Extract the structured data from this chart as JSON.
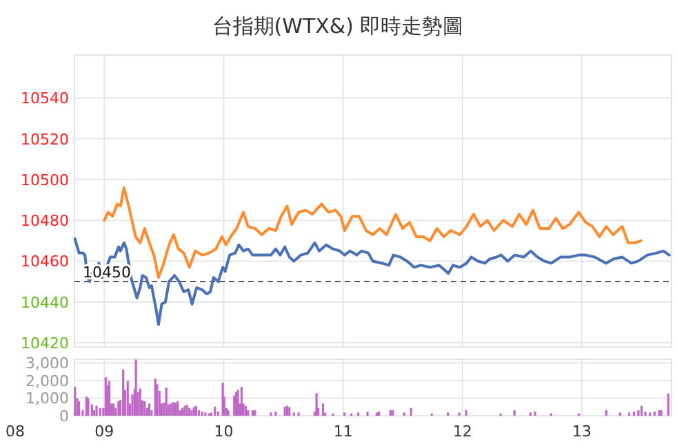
{
  "chart_data": [
    {
      "type": "line",
      "title": "台指期(WTX&) 即時走勢圖",
      "xlim": [
        8.75,
        13.75
      ],
      "xticks": [
        9,
        10,
        11,
        12,
        13
      ],
      "ylim": [
        10418,
        10561
      ],
      "yticks": [
        10420,
        10440,
        10460,
        10480,
        10500,
        10520,
        10540
      ],
      "grid": true,
      "tick_labels": "y",
      "line_style": "solid",
      "marker": "none",
      "ref_lines": [
        {
          "axis": "y",
          "value": 10450,
          "label": "10450",
          "color": "#555555",
          "line_style": "dashed"
        }
      ],
      "series": [
        {
          "color": "#4a70b8",
          "x": [
            8.754,
            8.788,
            8.819,
            8.838,
            8.858,
            8.877,
            8.896,
            8.935,
            8.954,
            8.981,
            9.012,
            9.05,
            9.088,
            9.119,
            9.135,
            9.165,
            9.185,
            9.223,
            9.273,
            9.3,
            9.319,
            9.35,
            9.377,
            9.396,
            9.435,
            9.454,
            9.481,
            9.512,
            9.542,
            9.588,
            9.627,
            9.665,
            9.704,
            9.735,
            9.773,
            9.819,
            9.858,
            9.888,
            9.915,
            9.954,
            9.992,
            10.012,
            10.05,
            10.096,
            10.127,
            10.165,
            10.204,
            10.242,
            10.281,
            10.338,
            10.396,
            10.435,
            10.473,
            10.512,
            10.55,
            10.588,
            10.646,
            10.704,
            10.762,
            10.8,
            10.858,
            10.915,
            10.973,
            11.012,
            11.057,
            11.115,
            11.153,
            11.211,
            11.249,
            11.326,
            11.383,
            11.421,
            11.479,
            11.536,
            11.594,
            11.651,
            11.728,
            11.805,
            11.843,
            11.881,
            11.92,
            11.977,
            12.034,
            12.073,
            12.13,
            12.188,
            12.226,
            12.284,
            12.322,
            12.379,
            12.437,
            12.513,
            12.571,
            12.628,
            12.686,
            12.743,
            12.82,
            12.897,
            12.973,
            13.031,
            13.107,
            13.203,
            13.261,
            13.337,
            13.414,
            13.471,
            13.548,
            13.625,
            13.682,
            13.732
          ],
          "values": [
            10471,
            10464,
            10464,
            10463,
            10452,
            10450,
            10454,
            10456,
            10459,
            10452,
            10456,
            10462,
            10462,
            10467,
            10465,
            10469,
            10466,
            10452,
            10442,
            10447,
            10453,
            10452,
            10447,
            10448,
            10436,
            10429,
            10439,
            10440,
            10450,
            10453,
            10450,
            10445,
            10446,
            10439,
            10447,
            10446,
            10444,
            10445,
            10452,
            10450,
            10457,
            10455,
            10463,
            10464,
            10468,
            10465,
            10466,
            10463,
            10463,
            10463,
            10463,
            10466,
            10463,
            10467,
            10462,
            10460,
            10463,
            10464,
            10469,
            10465,
            10468,
            10466,
            10465,
            10463,
            10465,
            10463,
            10465,
            10464,
            10460,
            10459,
            10458,
            10463,
            10462,
            10460,
            10457,
            10458,
            10457,
            10458,
            10456,
            10454,
            10458,
            10457,
            10459,
            10462,
            10460,
            10459,
            10461,
            10462,
            10463,
            10460,
            10463,
            10462,
            10465,
            10462,
            10460,
            10459,
            10462,
            10462,
            10463,
            10463,
            10462,
            10459,
            10461,
            10462,
            10459,
            10460,
            10463,
            10464,
            10465,
            10463
          ]
        },
        {
          "color": "#ff8c30",
          "x": [
            9.0,
            9.031,
            9.069,
            9.108,
            9.135,
            9.165,
            9.204,
            9.262,
            9.3,
            9.338,
            9.377,
            9.415,
            9.454,
            9.492,
            9.542,
            9.581,
            9.619,
            9.665,
            9.712,
            9.762,
            9.819,
            9.877,
            9.935,
            9.985,
            10.019,
            10.069,
            10.108,
            10.165,
            10.204,
            10.262,
            10.319,
            10.377,
            10.435,
            10.481,
            10.531,
            10.569,
            10.627,
            10.685,
            10.742,
            10.819,
            10.877,
            10.935,
            10.981,
            11.012,
            11.077,
            11.134,
            11.192,
            11.249,
            11.307,
            11.364,
            11.441,
            11.498,
            11.556,
            11.613,
            11.67,
            11.728,
            11.785,
            11.843,
            11.9,
            11.977,
            12.034,
            12.092,
            12.149,
            12.207,
            12.264,
            12.341,
            12.418,
            12.475,
            12.533,
            12.59,
            12.648,
            12.724,
            12.782,
            12.839,
            12.897,
            12.973,
            13.031,
            13.088,
            13.146,
            13.203,
            13.261,
            13.337,
            13.387,
            13.441,
            13.494
          ],
          "values": [
            10480,
            10484,
            10482,
            10488,
            10487,
            10496,
            10487,
            10472,
            10469,
            10476,
            10469,
            10463,
            10452,
            10458,
            10468,
            10473,
            10466,
            10464,
            10457,
            10465,
            10463,
            10464,
            10466,
            10472,
            10468,
            10473,
            10476,
            10484,
            10477,
            10476,
            10473,
            10476,
            10475,
            10482,
            10487,
            10478,
            10484,
            10485,
            10483,
            10488,
            10484,
            10485,
            10482,
            10475,
            10482,
            10482,
            10475,
            10473,
            10476,
            10473,
            10483,
            10476,
            10479,
            10472,
            10472,
            10470,
            10476,
            10472,
            10475,
            10473,
            10477,
            10483,
            10477,
            10480,
            10475,
            10480,
            10477,
            10483,
            10478,
            10485,
            10476,
            10476,
            10481,
            10476,
            10478,
            10484,
            10479,
            10477,
            10472,
            10477,
            10473,
            10477,
            10469,
            10469,
            10470
          ]
        }
      ]
    },
    {
      "type": "bar",
      "annotations": [
        "08"
      ],
      "xlim": [
        8.75,
        13.75
      ],
      "xticks": [
        {
          "value": 9,
          "label": "09"
        },
        {
          "value": 10,
          "label": "10"
        },
        {
          "value": 11,
          "label": "11"
        },
        {
          "value": 12,
          "label": "12"
        },
        {
          "value": 13,
          "label": "13"
        }
      ],
      "ylim": [
        0,
        3200
      ],
      "yticks": [
        0,
        {
          "value": 1000,
          "label": "1,000"
        },
        {
          "value": 2000,
          "label": "2,000"
        },
        {
          "value": 3000,
          "label": "3,000"
        }
      ],
      "grid": true,
      "series": [
        {
          "color": "#c068c8",
          "x": [
            8.754,
            8.773,
            8.788,
            8.819,
            8.85,
            8.865,
            8.896,
            8.915,
            8.935,
            8.965,
            8.992,
            9.012,
            9.027,
            9.042,
            9.058,
            9.077,
            9.096,
            9.119,
            9.135,
            9.158,
            9.173,
            9.196,
            9.215,
            9.235,
            9.254,
            9.265,
            9.281,
            9.3,
            9.319,
            9.338,
            9.358,
            9.377,
            9.396,
            9.427,
            9.442,
            9.462,
            9.481,
            9.5,
            9.519,
            9.538,
            9.558,
            9.577,
            9.596,
            9.615,
            9.635,
            9.654,
            9.673,
            9.692,
            9.712,
            9.731,
            9.75,
            9.769,
            9.792,
            9.819,
            9.846,
            9.877,
            9.896,
            9.927,
            9.954,
            9.992,
            10.004,
            10.023,
            10.038,
            10.088,
            10.104,
            10.119,
            10.135,
            10.15,
            10.165,
            10.185,
            10.204,
            10.242,
            10.262,
            10.396,
            10.435,
            10.512,
            10.531,
            10.55,
            10.588,
            10.627,
            10.762,
            10.777,
            10.792,
            10.831,
            10.85,
            10.915,
            11.012,
            11.069,
            11.127,
            11.204,
            11.281,
            11.3,
            11.396,
            11.415,
            11.512,
            11.569,
            11.742,
            11.877,
            11.973,
            12.031,
            12.319,
            12.435,
            12.569,
            12.608,
            12.742,
            12.973,
            13.204,
            13.319,
            13.396,
            13.435,
            13.473,
            13.5,
            13.531,
            13.569,
            13.608,
            13.646,
            13.665,
            13.723
          ],
          "values": [
            1640,
            1000,
            820,
            310,
            1080,
            1000,
            640,
            310,
            560,
            440,
            440,
            2180,
            1720,
            1970,
            690,
            690,
            440,
            820,
            900,
            2620,
            1460,
            1970,
            690,
            1210,
            1510,
            3180,
            1330,
            1540,
            870,
            820,
            440,
            690,
            310,
            2100,
            1790,
            1410,
            690,
            740,
            1590,
            640,
            690,
            770,
            740,
            820,
            310,
            440,
            560,
            620,
            440,
            310,
            490,
            560,
            310,
            230,
            180,
            130,
            180,
            510,
            230,
            1870,
            1080,
            440,
            310,
            1150,
            1330,
            1460,
            690,
            1640,
            690,
            560,
            310,
            310,
            310,
            180,
            230,
            510,
            560,
            490,
            180,
            180,
            230,
            1280,
            440,
            690,
            180,
            130,
            180,
            130,
            180,
            230,
            180,
            230,
            310,
            310,
            180,
            440,
            130,
            180,
            180,
            310,
            130,
            310,
            180,
            230,
            130,
            130,
            310,
            180,
            180,
            230,
            310,
            560,
            230,
            180,
            230,
            310,
            310,
            1260
          ]
        }
      ]
    }
  ]
}
